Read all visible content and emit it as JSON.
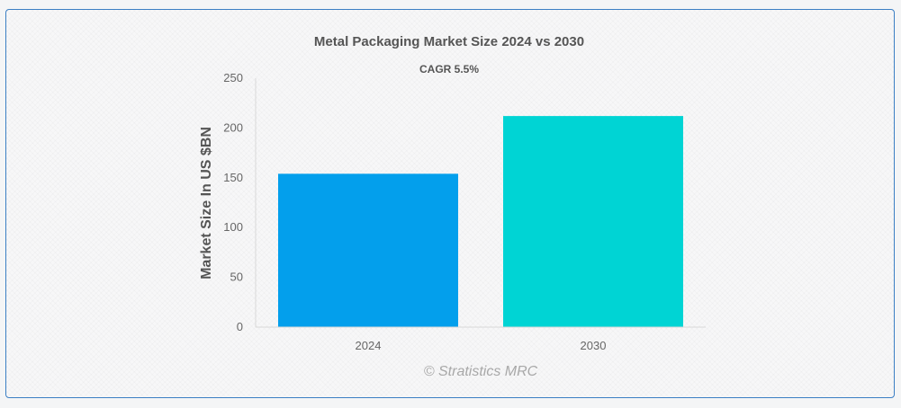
{
  "chart_data": {
    "type": "bar",
    "title": "Metal Packaging Market Size 2024 vs 2030",
    "subtitle": "CAGR 5.5%",
    "ylabel": "Market Size In US $BN",
    "xlabel": "",
    "categories": [
      "2024",
      "2030"
    ],
    "values": [
      154,
      212
    ],
    "ylim": [
      0,
      250
    ],
    "yticks": [
      0,
      50,
      100,
      150,
      200,
      250
    ],
    "colors": [
      "#039fec",
      "#00d4d4"
    ],
    "grid": false,
    "legend": "none"
  },
  "credit": "© Stratistics MRC"
}
